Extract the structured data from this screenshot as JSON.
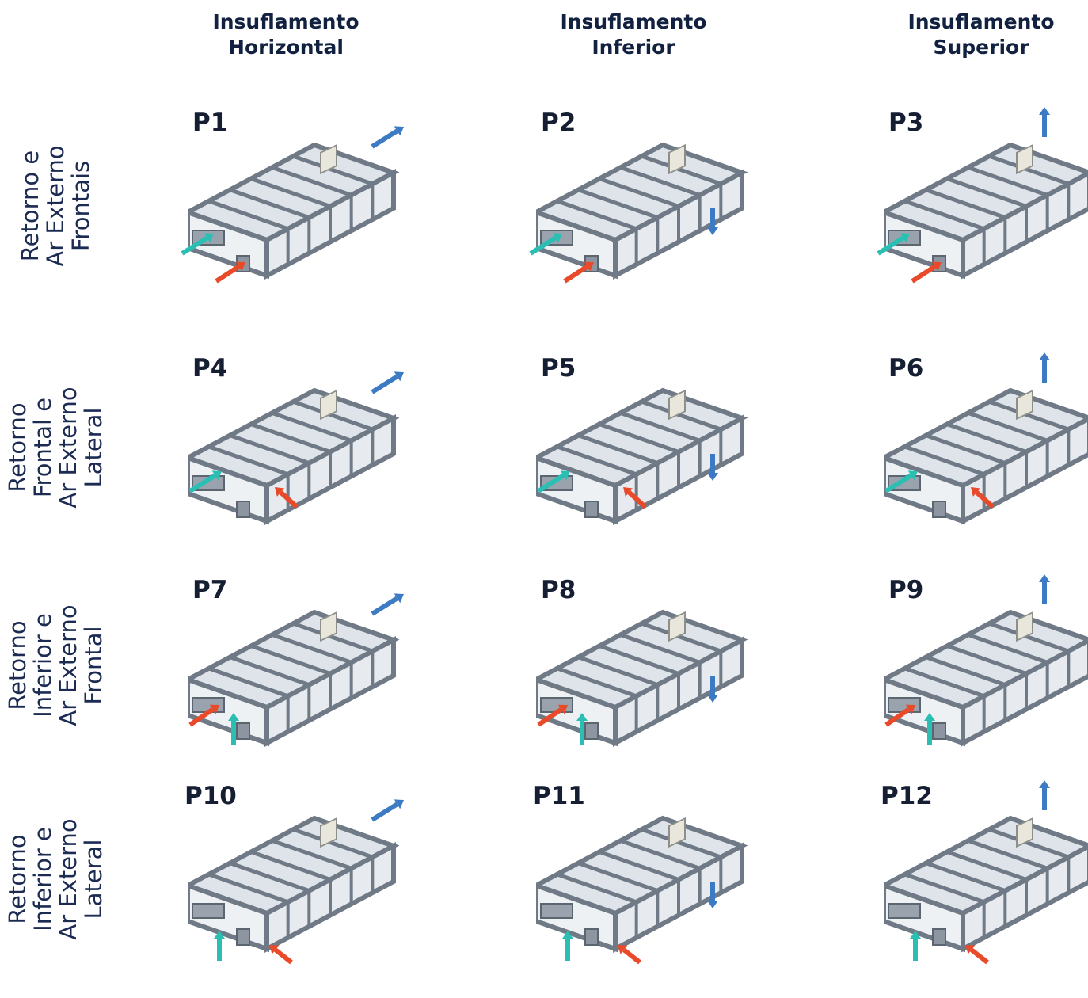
{
  "columns": [
    {
      "line1": "Insuflamento",
      "line2": "Horizontal"
    },
    {
      "line1": "Insuflamento",
      "line2": "Inferior"
    },
    {
      "line1": "Insuflamento",
      "line2": "Superior"
    }
  ],
  "rows": [
    {
      "lines": [
        "Retorno e",
        "Ar Externo",
        "Frontais"
      ]
    },
    {
      "lines": [
        "Retorno",
        "Frontal e",
        "Ar Externo",
        "Lateral"
      ]
    },
    {
      "lines": [
        "Retorno",
        "Inferior e",
        "Ar Externo",
        "Frontal"
      ]
    },
    {
      "lines": [
        "Retorno",
        "Inferior e",
        "Ar Externo",
        "Lateral"
      ]
    }
  ],
  "configs": [
    "P1",
    "P2",
    "P3",
    "P4",
    "P5",
    "P6",
    "P7",
    "P8",
    "P9",
    "P10",
    "P11",
    "P12"
  ],
  "colors": {
    "supply_arrow": "#3d7ac4",
    "return_arrow": "#2bbfb3",
    "outside_air_arrow": "#e84a2a",
    "frame": "#6f7a86",
    "panel": "#dfe4ea"
  }
}
